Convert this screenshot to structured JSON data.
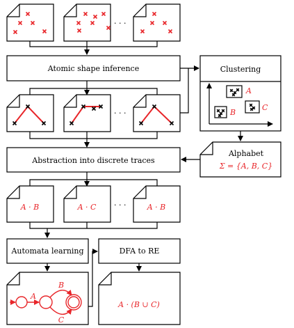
{
  "steps": {
    "atomic_shape_inference": "Atomic shape inference",
    "clustering": "Clustering",
    "abstraction": "Abstraction into discrete traces",
    "alphabet_title": "Alphabet",
    "alphabet_set": "Σ = {A, B, C}",
    "automata_learning": "Automata learning",
    "dfa_to_re": "DFA to RE"
  },
  "ellipsis": "· · ·",
  "clusters": [
    "A",
    "B",
    "C"
  ],
  "traces": [
    "A · B",
    "A · C",
    "A · B"
  ],
  "automaton_labels": {
    "a": "A",
    "b": "B",
    "c": "C"
  },
  "regex": "A · (B ∪ C)",
  "colors": {
    "accent": "#e8262a",
    "ink": "#000000"
  }
}
